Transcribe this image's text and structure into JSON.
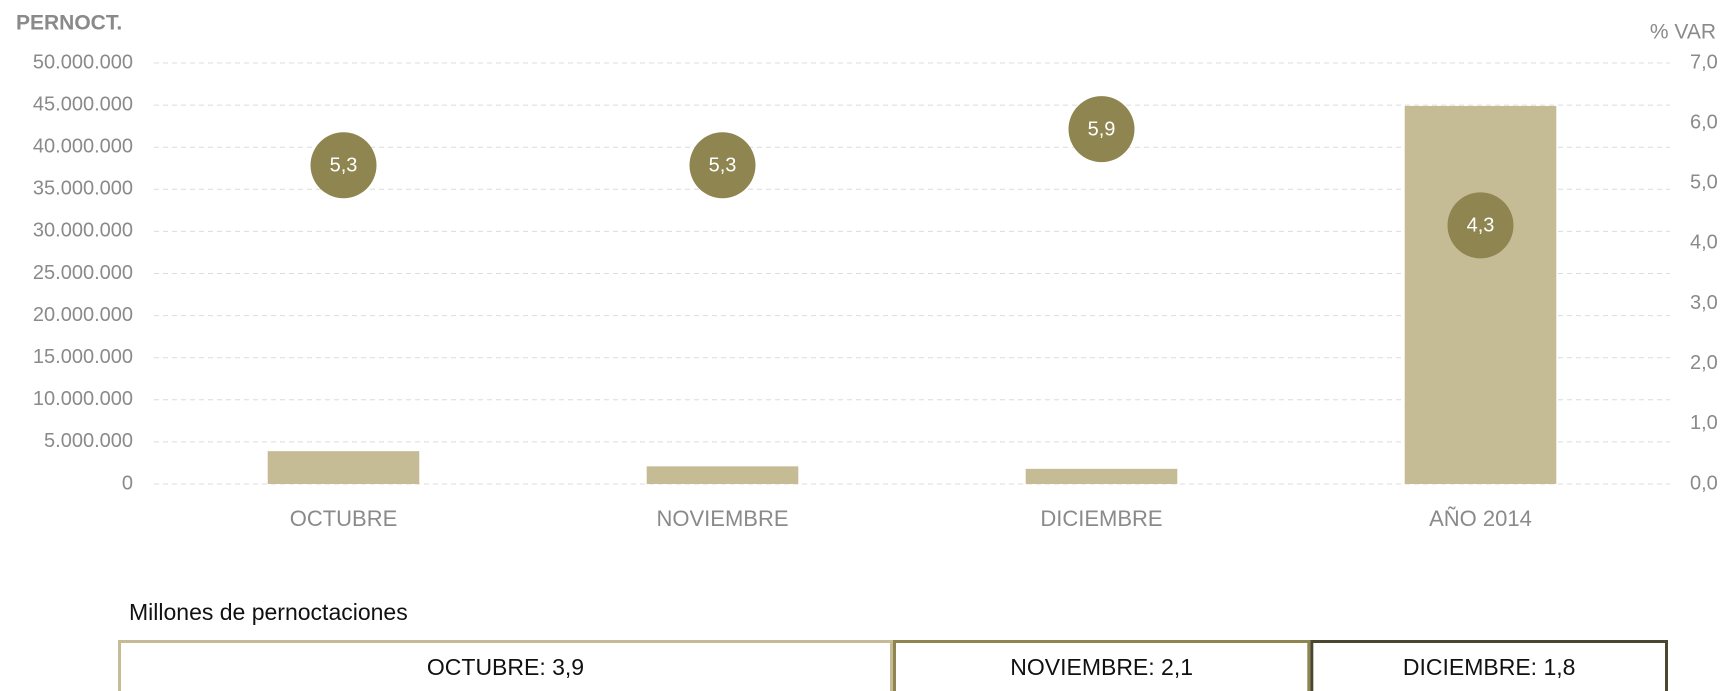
{
  "chart_data": [
    {
      "type": "bar",
      "y_axis_label": "PERNOCT.",
      "y2_axis_label": "% VAR",
      "categories": [
        "OCTUBRE",
        "NOVIEMBRE",
        "DICIEMBRE",
        "AÑO 2014"
      ],
      "series": [
        {
          "name": "Pernoctaciones",
          "color": "#c5bc96",
          "values": [
            3900000,
            2100000,
            1800000,
            44900000
          ]
        },
        {
          "name": "% Var",
          "color": "#8f8550",
          "axis": "y2",
          "values": [
            5.3,
            5.3,
            5.9,
            4.3
          ],
          "value_labels": [
            "5,3",
            "5,3",
            "5,9",
            "4,3"
          ]
        }
      ],
      "ylim": [
        0,
        50000000
      ],
      "yticks": [
        {
          "value": 0,
          "label": "0"
        },
        {
          "value": 5000000,
          "label": "5.000.000"
        },
        {
          "value": 10000000,
          "label": "10.000.000"
        },
        {
          "value": 15000000,
          "label": "15.000.000"
        },
        {
          "value": 20000000,
          "label": "20.000.000"
        },
        {
          "value": 25000000,
          "label": "25.000.000"
        },
        {
          "value": 30000000,
          "label": "30.000.000"
        },
        {
          "value": 35000000,
          "label": "35.000.000"
        },
        {
          "value": 40000000,
          "label": "40.000.000"
        },
        {
          "value": 45000000,
          "label": "45.000.000"
        },
        {
          "value": 50000000,
          "label": "50.000.000"
        }
      ],
      "y2lim": [
        0,
        7
      ],
      "y2ticks": [
        {
          "value": 0,
          "label": "0,0"
        },
        {
          "value": 1,
          "label": "1,0"
        },
        {
          "value": 2,
          "label": "2,0"
        },
        {
          "value": 3,
          "label": "3,0"
        },
        {
          "value": 4,
          "label": "4,0"
        },
        {
          "value": 5,
          "label": "5,0"
        },
        {
          "value": 6,
          "label": "6,0"
        },
        {
          "value": 7,
          "label": "7,0"
        }
      ],
      "grid": true
    },
    {
      "type": "strip",
      "title": "Millones de pernoctaciones",
      "categories": [
        "OCTUBRE",
        "NOVIEMBRE",
        "DICIEMBRE"
      ],
      "values": [
        3.9,
        2.1,
        1.8
      ],
      "value_labels": [
        "OCTUBRE: 3,9",
        "NOVIEMBRE: 2,1",
        "DICIEMBRE: 1,8"
      ],
      "colors": [
        "#c5bc96",
        "#8f8550",
        "#4a4630"
      ]
    }
  ]
}
